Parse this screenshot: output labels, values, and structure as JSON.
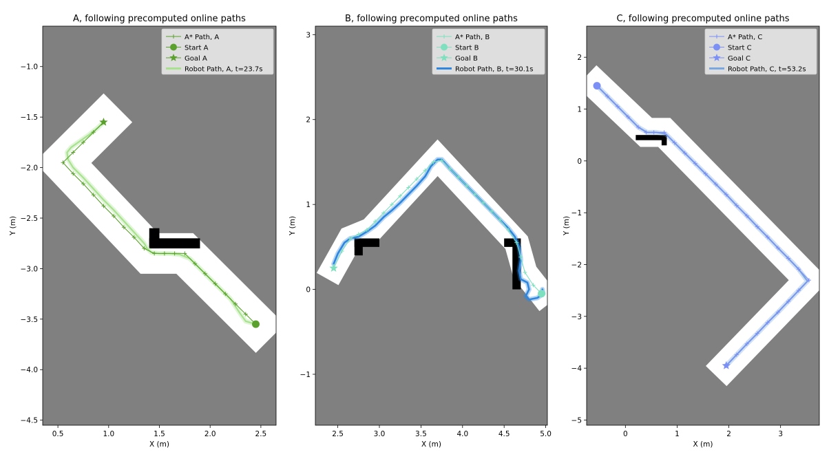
{
  "figure": {
    "background": "#ffffff",
    "axes_background": "#808080",
    "free_cell_color": "#ffffff",
    "obstacle_color": "#000000"
  },
  "chart_data": [
    {
      "type": "line",
      "title": "A, following precomputed online paths",
      "xlabel": "X (m)",
      "ylabel": "Y (m)",
      "xlim": [
        0.35,
        2.65
      ],
      "ylim": [
        -4.55,
        -0.6
      ],
      "xticks": [
        0.5,
        1.0,
        1.5,
        2.0,
        2.5
      ],
      "xtick_labels": [
        "0.5",
        "1.0",
        "1.5",
        "2.0",
        "2.5"
      ],
      "yticks": [
        -4.5,
        -4.0,
        -3.5,
        -3.0,
        -2.5,
        -2.0,
        -1.5,
        -1.0
      ],
      "ytick_labels": [
        "−4.5",
        "−4.0",
        "−3.5",
        "−3.0",
        "−2.5",
        "−2.0",
        "−1.5",
        "−1.0"
      ],
      "grid": false,
      "legend_position": "top-right",
      "colors": {
        "astar": "#5aa02c",
        "robot": "#a8e28e"
      },
      "corridor_path": [
        [
          0.95,
          -1.55
        ],
        [
          0.55,
          -1.95
        ],
        [
          1.4,
          -2.85
        ],
        [
          1.75,
          -2.85
        ],
        [
          2.45,
          -3.55
        ]
      ],
      "corridor_half_width_m": 0.2,
      "obstacles": [
        {
          "x": [
            1.4,
            1.5
          ],
          "y": [
            -2.8,
            -2.6
          ]
        },
        {
          "x": [
            1.4,
            1.9
          ],
          "y": [
            -2.8,
            -2.7
          ]
        }
      ],
      "series": [
        {
          "name": "A* Path, A",
          "marker": "+",
          "x": [
            0.95,
            0.85,
            0.75,
            0.65,
            0.55,
            0.65,
            0.75,
            0.85,
            0.95,
            1.05,
            1.15,
            1.25,
            1.35,
            1.45,
            1.55,
            1.65,
            1.75,
            1.85,
            1.95,
            2.05,
            2.15,
            2.25,
            2.35,
            2.45
          ],
          "y": [
            -1.55,
            -1.65,
            -1.75,
            -1.85,
            -1.95,
            -2.06,
            -2.16,
            -2.27,
            -2.38,
            -2.48,
            -2.59,
            -2.69,
            -2.8,
            -2.85,
            -2.85,
            -2.85,
            -2.85,
            -2.95,
            -3.05,
            -3.15,
            -3.25,
            -3.35,
            -3.45,
            -3.55
          ]
        },
        {
          "name": "Robot Path, A, t=23.7s",
          "x": [
            2.45,
            2.35,
            2.3,
            2.2,
            2.1,
            2.0,
            1.9,
            1.8,
            1.7,
            1.6,
            1.5,
            1.42,
            1.38,
            1.35,
            1.25,
            1.15,
            1.05,
            0.95,
            0.85,
            0.75,
            0.65,
            0.6,
            0.59,
            0.63,
            0.7,
            0.8,
            0.9,
            0.95
          ],
          "y": [
            -3.55,
            -3.52,
            -3.45,
            -3.3,
            -3.2,
            -3.1,
            -3.0,
            -2.9,
            -2.86,
            -2.85,
            -2.85,
            -2.84,
            -2.8,
            -2.75,
            -2.64,
            -2.53,
            -2.42,
            -2.32,
            -2.21,
            -2.1,
            -2.0,
            -1.92,
            -1.85,
            -1.8,
            -1.75,
            -1.68,
            -1.6,
            -1.55
          ]
        }
      ],
      "start": {
        "name": "Start A",
        "x": 2.45,
        "y": -3.55
      },
      "goal": {
        "name": "Goal A",
        "x": 0.95,
        "y": -1.55
      }
    },
    {
      "type": "line",
      "title": "B, following precomputed online paths",
      "xlabel": "X (m)",
      "ylabel": "Y (m)",
      "xlim": [
        2.23,
        5.02
      ],
      "ylim": [
        -1.6,
        3.1
      ],
      "xticks": [
        2.5,
        3.0,
        3.5,
        4.0,
        4.5,
        5.0
      ],
      "xtick_labels": [
        "2.5",
        "3.0",
        "3.5",
        "4.0",
        "4.5",
        "5.0"
      ],
      "yticks": [
        -1,
        0,
        1,
        2,
        3
      ],
      "ytick_labels": [
        "−1",
        "0",
        "1",
        "2",
        "3"
      ],
      "grid": false,
      "legend_position": "top-right",
      "colors": {
        "astar": "#7ee0be",
        "robot": "#2e86de"
      },
      "corridor_path": [
        [
          2.45,
          0.25
        ],
        [
          2.65,
          0.6
        ],
        [
          2.9,
          0.7
        ],
        [
          3.7,
          1.55
        ],
        [
          4.65,
          0.55
        ],
        [
          4.75,
          0.2
        ],
        [
          4.95,
          -0.05
        ]
      ],
      "corridor_half_width_m": 0.15,
      "obstacles": [
        {
          "x": [
            2.7,
            3.0
          ],
          "y": [
            0.5,
            0.6
          ]
        },
        {
          "x": [
            2.7,
            2.8
          ],
          "y": [
            0.4,
            0.6
          ]
        },
        {
          "x": [
            4.5,
            4.7
          ],
          "y": [
            0.5,
            0.6
          ]
        },
        {
          "x": [
            4.6,
            4.7
          ],
          "y": [
            0.0,
            0.6
          ]
        }
      ],
      "series": [
        {
          "name": "A* Path, B",
          "marker": "+",
          "x": [
            2.45,
            2.55,
            2.65,
            2.75,
            2.85,
            2.95,
            3.05,
            3.15,
            3.25,
            3.35,
            3.45,
            3.55,
            3.65,
            3.75,
            3.85,
            3.95,
            4.05,
            4.15,
            4.25,
            4.35,
            4.45,
            4.55,
            4.65,
            4.7,
            4.75,
            4.85,
            4.95
          ],
          "y": [
            0.25,
            0.45,
            0.6,
            0.65,
            0.7,
            0.8,
            0.9,
            1.0,
            1.1,
            1.2,
            1.3,
            1.4,
            1.5,
            1.52,
            1.42,
            1.32,
            1.22,
            1.12,
            1.02,
            0.92,
            0.82,
            0.7,
            0.55,
            0.38,
            0.2,
            0.05,
            -0.05
          ]
        },
        {
          "name": "Robot Path, B, t=30.1s",
          "x": [
            2.45,
            2.5,
            2.58,
            2.65,
            2.75,
            2.85,
            2.95,
            3.05,
            3.15,
            3.25,
            3.35,
            3.45,
            3.55,
            3.62,
            3.7,
            3.75,
            3.85,
            3.95,
            4.05,
            4.15,
            4.25,
            4.35,
            4.45,
            4.55,
            4.63,
            4.68,
            4.7,
            4.68,
            4.7,
            4.78,
            4.8,
            4.76,
            4.8,
            4.9,
            4.97,
            4.96
          ],
          "y": [
            0.3,
            0.42,
            0.55,
            0.6,
            0.62,
            0.68,
            0.75,
            0.85,
            0.93,
            1.02,
            1.12,
            1.22,
            1.33,
            1.45,
            1.53,
            1.53,
            1.42,
            1.32,
            1.22,
            1.12,
            1.02,
            0.92,
            0.82,
            0.72,
            0.62,
            0.5,
            0.35,
            0.22,
            0.12,
            0.08,
            0.0,
            -0.08,
            -0.12,
            -0.1,
            -0.05,
            0.0
          ]
        }
      ],
      "start": {
        "name": "Start B",
        "x": 4.95,
        "y": -0.05
      },
      "goal": {
        "name": "Goal B",
        "x": 2.45,
        "y": 0.25
      }
    },
    {
      "type": "line",
      "title": "C, following precomputed online paths",
      "xlabel": "X (m)",
      "ylabel": "Y (m)",
      "xlim": [
        -0.75,
        3.75
      ],
      "ylim": [
        -5.1,
        2.6
      ],
      "xticks": [
        0,
        1,
        2,
        3
      ],
      "xtick_labels": [
        "0",
        "1",
        "2",
        "3"
      ],
      "yticks": [
        -5,
        -4,
        -3,
        -2,
        -1,
        0,
        1,
        2
      ],
      "ytick_labels": [
        "−5",
        "−4",
        "−3",
        "−2",
        "−1",
        "0",
        "1",
        "2"
      ],
      "grid": false,
      "legend_position": "top-right",
      "colors": {
        "astar": "#7b8ff5",
        "robot": "#7aa7e0"
      },
      "corridor_path": [
        [
          -0.55,
          1.45
        ],
        [
          0.4,
          0.55
        ],
        [
          0.75,
          0.55
        ],
        [
          3.55,
          -2.3
        ],
        [
          1.95,
          -3.95
        ]
      ],
      "corridor_half_width_m": 0.28,
      "obstacles": [
        {
          "x": [
            0.2,
            0.8
          ],
          "y": [
            0.4,
            0.5
          ]
        },
        {
          "x": [
            0.7,
            0.8
          ],
          "y": [
            0.3,
            0.5
          ]
        }
      ],
      "series": [
        {
          "name": "A* Path, C",
          "marker": "+",
          "x": [
            -0.55,
            -0.35,
            -0.15,
            0.05,
            0.25,
            0.4,
            0.55,
            0.75,
            0.95,
            1.15,
            1.35,
            1.55,
            1.75,
            1.95,
            2.15,
            2.35,
            2.55,
            2.75,
            2.95,
            3.15,
            3.35,
            3.55,
            3.35,
            3.15,
            2.95,
            2.75,
            2.55,
            2.35,
            2.15,
            1.95
          ],
          "y": [
            1.45,
            1.25,
            1.05,
            0.85,
            0.65,
            0.55,
            0.55,
            0.55,
            0.35,
            0.15,
            -0.05,
            -0.25,
            -0.45,
            -0.65,
            -0.86,
            -1.06,
            -1.27,
            -1.47,
            -1.68,
            -1.88,
            -2.09,
            -2.3,
            -2.5,
            -2.71,
            -2.92,
            -3.12,
            -3.33,
            -3.53,
            -3.74,
            -3.95
          ]
        },
        {
          "name": "Robot Path, C, t=53.2s",
          "x": [
            -0.55,
            -0.35,
            -0.15,
            0.05,
            0.25,
            0.42,
            0.6,
            0.78,
            0.95,
            1.15,
            1.35,
            1.55,
            1.75,
            1.95,
            2.15,
            2.35,
            2.55,
            2.75,
            2.95,
            3.15,
            3.35,
            3.52,
            3.35,
            3.15,
            2.95,
            2.75,
            2.55,
            2.35,
            2.15,
            1.95
          ],
          "y": [
            1.45,
            1.25,
            1.05,
            0.85,
            0.65,
            0.55,
            0.55,
            0.52,
            0.35,
            0.15,
            -0.05,
            -0.25,
            -0.45,
            -0.65,
            -0.86,
            -1.06,
            -1.27,
            -1.47,
            -1.68,
            -1.88,
            -2.09,
            -2.32,
            -2.5,
            -2.71,
            -2.92,
            -3.12,
            -3.33,
            -3.53,
            -3.74,
            -3.95
          ]
        }
      ],
      "start": {
        "name": "Start C",
        "x": -0.55,
        "y": 1.45
      },
      "goal": {
        "name": "Goal C",
        "x": 1.95,
        "y": -3.95
      }
    }
  ]
}
